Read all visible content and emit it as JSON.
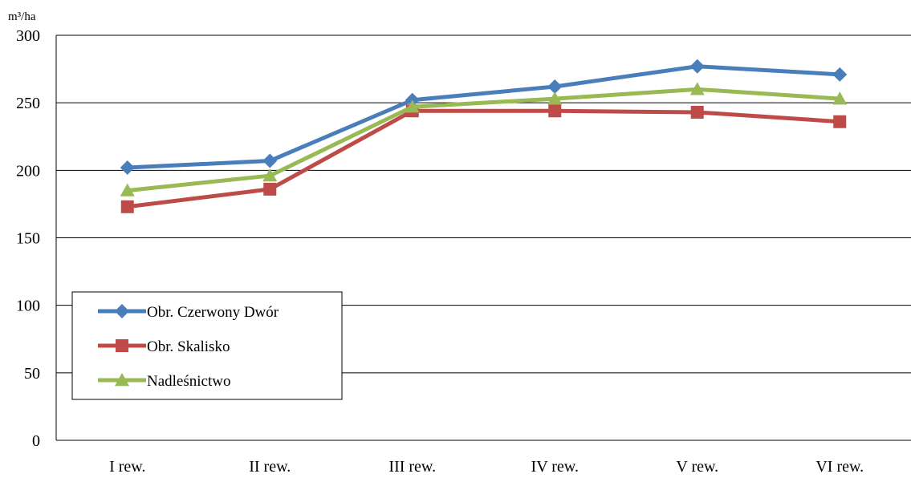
{
  "chart_data": {
    "type": "line",
    "unit_label": "m³/ha",
    "categories": [
      "I rew.",
      "II rew.",
      "III rew.",
      "IV rew.",
      "V rew.",
      "VI rew."
    ],
    "ylim": [
      0,
      300
    ],
    "yticks": [
      "0",
      "50",
      "100",
      "150",
      "200",
      "250",
      "300"
    ],
    "grid": true,
    "legend_position": "lower-left",
    "series": [
      {
        "name": "Obr. Czerwony Dwór",
        "color": "#4a7ebb",
        "marker": "diamond",
        "values": [
          202,
          207,
          252,
          262,
          277,
          271
        ]
      },
      {
        "name": "Obr. Skalisko",
        "color": "#be4b48",
        "marker": "square",
        "values": [
          173,
          186,
          244,
          244,
          243,
          236
        ]
      },
      {
        "name": "Nadleśnictwo",
        "color": "#98b954",
        "marker": "triangle",
        "values": [
          185,
          196,
          247,
          253,
          260,
          253
        ]
      }
    ]
  }
}
